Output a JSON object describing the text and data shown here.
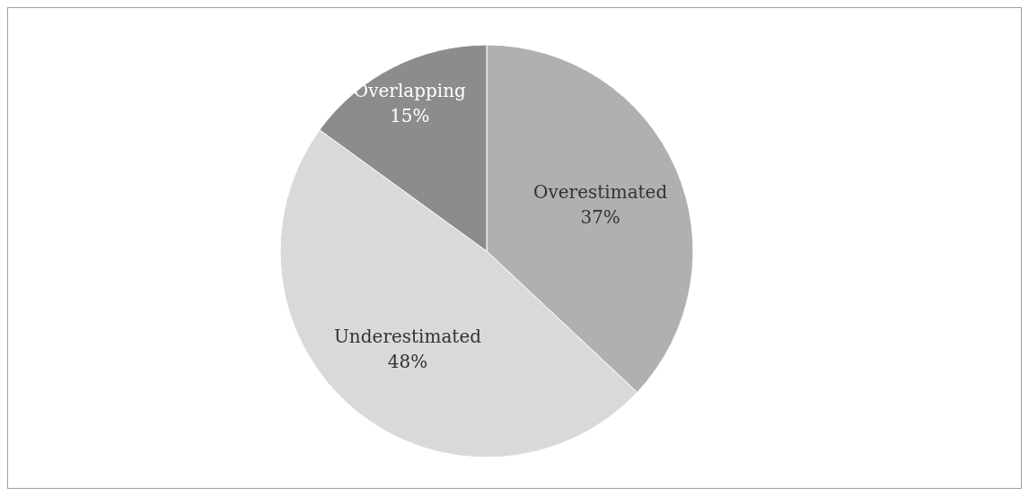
{
  "chart_data": {
    "type": "pie",
    "categories": [
      "Overestimated",
      "Underestimated",
      "Overlapping"
    ],
    "values": [
      37,
      48,
      15
    ],
    "value_labels": [
      "37%",
      "48%",
      "15%"
    ],
    "colors": [
      "#b0b0b0",
      "#d9d9d9",
      "#8c8c8c"
    ],
    "legend": false
  }
}
